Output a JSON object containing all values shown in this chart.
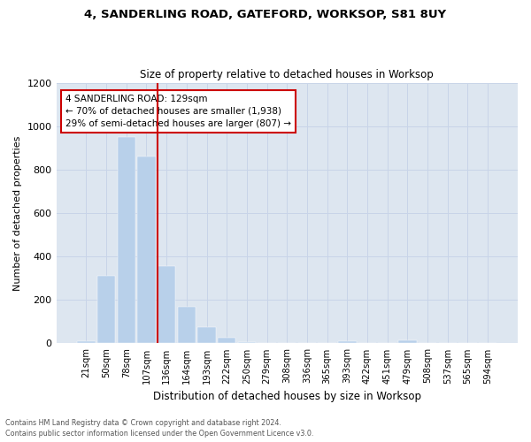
{
  "title1": "4, SANDERLING ROAD, GATEFORD, WORKSOP, S81 8UY",
  "title2": "Size of property relative to detached houses in Worksop",
  "xlabel": "Distribution of detached houses by size in Worksop",
  "ylabel": "Number of detached properties",
  "footnote1": "Contains HM Land Registry data © Crown copyright and database right 2024.",
  "footnote2": "Contains public sector information licensed under the Open Government Licence v3.0.",
  "bar_labels": [
    "21sqm",
    "50sqm",
    "78sqm",
    "107sqm",
    "136sqm",
    "164sqm",
    "193sqm",
    "222sqm",
    "250sqm",
    "279sqm",
    "308sqm",
    "336sqm",
    "365sqm",
    "393sqm",
    "422sqm",
    "451sqm",
    "479sqm",
    "508sqm",
    "537sqm",
    "565sqm",
    "594sqm"
  ],
  "bar_values": [
    10,
    310,
    950,
    860,
    355,
    170,
    75,
    27,
    5,
    3,
    3,
    2,
    2,
    8,
    0,
    0,
    15,
    0,
    0,
    0,
    0
  ],
  "bar_color": "#b8d0ea",
  "bar_edgecolor": "#b8d0ea",
  "grid_color": "#c8d4e8",
  "bg_color": "#dde6f0",
  "vline_color": "#cc0000",
  "annotation_title": "4 SANDERLING ROAD: 129sqm",
  "annotation_line1": "← 70% of detached houses are smaller (1,938)",
  "annotation_line2": "29% of semi-detached houses are larger (807) →",
  "annotation_box_color": "#cc0000",
  "ylim": [
    0,
    1200
  ],
  "yticks": [
    0,
    200,
    400,
    600,
    800,
    1000,
    1200
  ]
}
